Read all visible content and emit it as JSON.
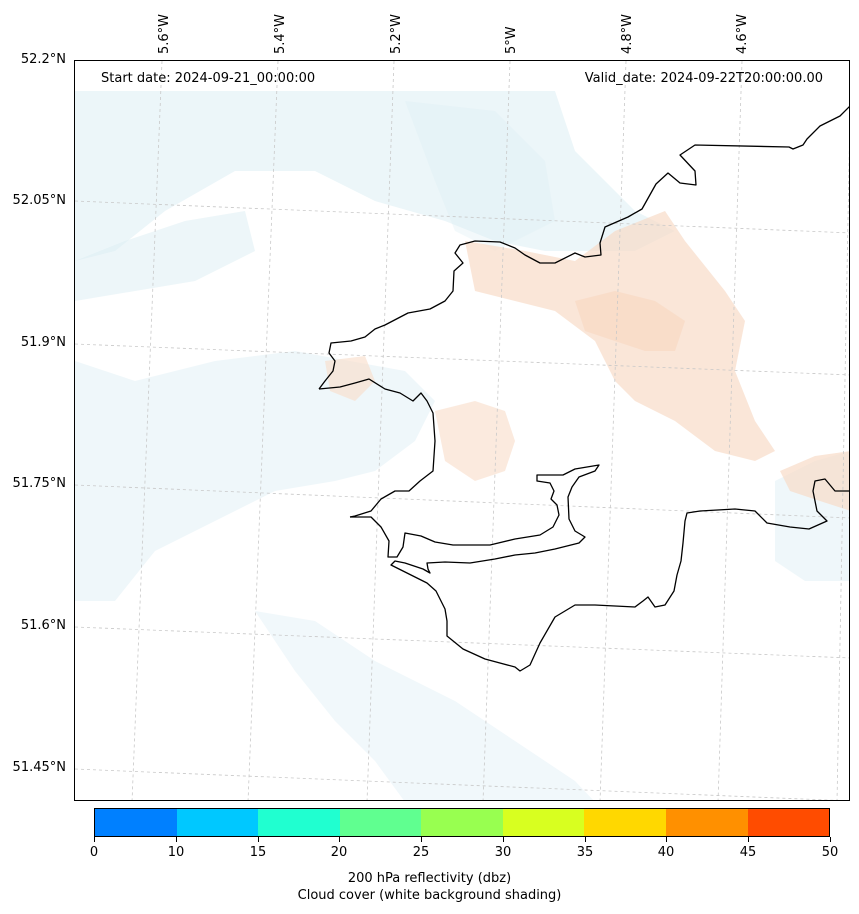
{
  "map": {
    "start_date": "Start date: 2024-09-21_00:00:00",
    "valid_date": "Valid_date: 2024-09-22T20:00:00.00",
    "lat_labels": [
      "52.2°N",
      "52.05°N",
      "51.9°N",
      "51.75°N",
      "51.6°N",
      "51.45°N"
    ],
    "lon_labels": [
      "5.6°W",
      "5.4°W",
      "5.2°W",
      "5°W",
      "4.8°W",
      "4.6°W"
    ]
  },
  "colorbar": {
    "ticks": [
      "0",
      "10",
      "15",
      "20",
      "25",
      "30",
      "35",
      "40",
      "45",
      "50"
    ],
    "colors": [
      "#0080ff",
      "#00c8ff",
      "#20ffd0",
      "#60ff90",
      "#98ff50",
      "#d8ff20",
      "#ffd800",
      "#ff9000",
      "#ff4c00"
    ],
    "label": "200 hPa reflectivity (dbz)",
    "sublabel": "Cloud cover (white background shading)"
  },
  "colors": {
    "cloud_shading": "#dceef4",
    "reflectivity_shading": "#f8dcc8",
    "coastline": "#000000",
    "gridline": "#c8c8c8"
  }
}
